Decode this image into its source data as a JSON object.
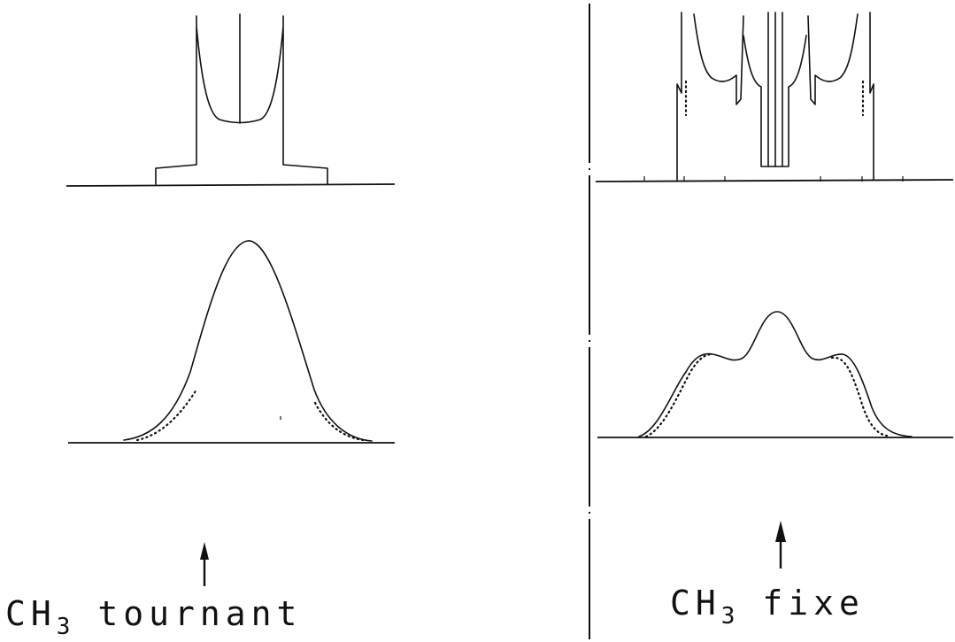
{
  "captions": {
    "left": {
      "main": "CH",
      "sub": "3",
      "rest": "tournant"
    },
    "right": {
      "main": "CH",
      "sub": "3",
      "rest": "fixe"
    }
  },
  "colors": {
    "ink": "#111111",
    "background": "#ffffff"
  }
}
